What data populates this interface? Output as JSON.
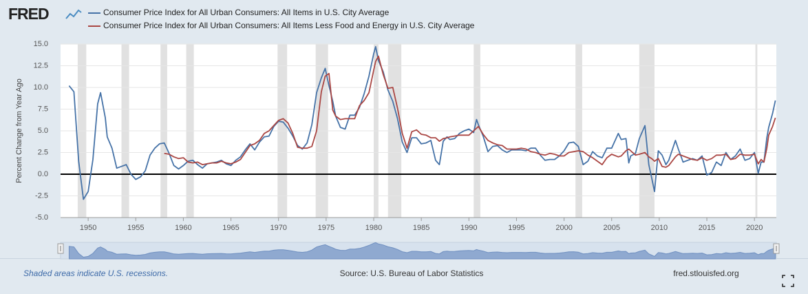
{
  "chart_data": {
    "type": "line",
    "logo": "FRED",
    "ylabel": "Percent Change from Year Ago",
    "footer_left": "Shaded areas indicate U.S. recessions.",
    "source": "Source: U.S. Bureau of Labor Statistics",
    "site": "fred.stlouisfed.org",
    "xlim": [
      1947.1,
      2022.3
    ],
    "ylim": [
      -5,
      15
    ],
    "xticks": [
      1950,
      1955,
      1960,
      1965,
      1970,
      1975,
      1980,
      1985,
      1990,
      1995,
      2000,
      2005,
      2010,
      2015,
      2020
    ],
    "yticks": [
      {
        "value": -5,
        "label": "-5.0"
      },
      -2.5,
      {
        "value": 0,
        "label": "0.0"
      },
      2.5,
      {
        "value": 5,
        "label": "5.0"
      },
      7.5,
      {
        "value": 10,
        "label": "10.0"
      },
      12.5,
      {
        "value": 15,
        "label": "15.0"
      }
    ],
    "grid": true,
    "recession_color": "#e1e1e1",
    "recessions": [
      [
        1948.9,
        1949.8
      ],
      [
        1953.5,
        1954.3
      ],
      [
        1957.6,
        1958.3
      ],
      [
        1960.3,
        1961.1
      ],
      [
        1969.9,
        1970.9
      ],
      [
        1973.9,
        1975.2
      ],
      [
        1980.0,
        1980.5
      ],
      [
        1981.5,
        1982.9
      ],
      [
        1990.5,
        1991.2
      ],
      [
        2001.2,
        2001.9
      ],
      [
        2007.9,
        2009.5
      ],
      [
        2020.1,
        2020.3
      ]
    ],
    "x": [
      1948,
      1948.5,
      1949,
      1949.5,
      1950,
      1950.5,
      1951,
      1951.3,
      1951.8,
      1952,
      1952.5,
      1953,
      1953.5,
      1954,
      1954.5,
      1955,
      1955.5,
      1956,
      1956.5,
      1957,
      1957.5,
      1958,
      1958.5,
      1959,
      1959.5,
      1960,
      1960.5,
      1961,
      1961.5,
      1962,
      1962.5,
      1963,
      1963.5,
      1964,
      1964.5,
      1965,
      1965.5,
      1966,
      1966.5,
      1967,
      1967.5,
      1968,
      1968.5,
      1969,
      1969.5,
      1970,
      1970.5,
      1971,
      1971.5,
      1972,
      1972.5,
      1973,
      1973.5,
      1974,
      1974.5,
      1974.9,
      1975.3,
      1975.7,
      1976,
      1976.5,
      1977,
      1977.5,
      1978,
      1978.5,
      1979,
      1979.5,
      1980,
      1980.2,
      1980.5,
      1981,
      1981.5,
      1982,
      1982.5,
      1983,
      1983.5,
      1984,
      1984.5,
      1985,
      1985.5,
      1986,
      1986.5,
      1986.9,
      1987.3,
      1987.7,
      1988,
      1988.5,
      1989,
      1989.5,
      1990,
      1990.5,
      1990.8,
      1991,
      1991.5,
      1992,
      1992.5,
      1993,
      1993.5,
      1994,
      1994.5,
      1995,
      1995.5,
      1996,
      1996.5,
      1997,
      1997.5,
      1998,
      1998.5,
      1999,
      1999.5,
      2000,
      2000.5,
      2001,
      2001.5,
      2002,
      2002.5,
      2003,
      2003.5,
      2004,
      2004.5,
      2005,
      2005.7,
      2006,
      2006.5,
      2006.8,
      2007,
      2007.5,
      2007.9,
      2008.5,
      2008.9,
      2009.2,
      2009.5,
      2009.9,
      2010.3,
      2010.7,
      2011,
      2011.7,
      2012,
      2012.5,
      2013,
      2013.5,
      2014,
      2014.5,
      2015,
      2015.5,
      2016,
      2016.5,
      2017,
      2017.5,
      2018,
      2018.5,
      2019,
      2019.5,
      2020,
      2020.4,
      2020.7,
      2021,
      2021.3,
      2021.5,
      2021.9,
      2022.2
    ],
    "series": [
      {
        "name": "Consumer Price Index for All Urban Consumers: All Items in U.S. City Average",
        "color": "#4572a7",
        "values": [
          10.2,
          9.5,
          1.5,
          -2.9,
          -2.0,
          1.7,
          8.1,
          9.4,
          6.5,
          4.3,
          3.0,
          0.7,
          0.9,
          1.1,
          0.0,
          -0.6,
          -0.3,
          0.4,
          2.2,
          3.0,
          3.5,
          3.6,
          2.4,
          1.0,
          0.6,
          1.0,
          1.5,
          1.6,
          1.1,
          0.7,
          1.2,
          1.3,
          1.4,
          1.6,
          1.2,
          1.0,
          1.6,
          2.0,
          2.8,
          3.5,
          2.8,
          3.7,
          4.3,
          4.4,
          5.5,
          6.1,
          6.0,
          5.3,
          4.4,
          3.3,
          2.9,
          3.6,
          5.7,
          9.4,
          11.1,
          12.2,
          10.2,
          8.4,
          6.7,
          5.4,
          5.2,
          6.8,
          6.8,
          7.7,
          9.3,
          11.3,
          13.9,
          14.7,
          13.1,
          11.8,
          9.7,
          8.4,
          6.4,
          3.7,
          2.5,
          4.2,
          4.2,
          3.5,
          3.6,
          3.9,
          1.6,
          1.1,
          3.8,
          4.3,
          4.0,
          4.1,
          4.7,
          5.0,
          5.2,
          4.8,
          6.3,
          5.7,
          4.4,
          2.6,
          3.2,
          3.3,
          2.8,
          2.5,
          2.8,
          2.8,
          2.8,
          2.7,
          3.0,
          3.0,
          2.2,
          1.6,
          1.7,
          1.7,
          2.1,
          2.7,
          3.6,
          3.7,
          3.2,
          1.1,
          1.5,
          2.6,
          2.1,
          1.9,
          3.0,
          3.0,
          4.7,
          4.0,
          4.1,
          1.3,
          2.1,
          2.4,
          4.1,
          5.6,
          1.1,
          -0.4,
          -2.0,
          2.7,
          2.2,
          1.1,
          1.6,
          3.9,
          2.9,
          1.4,
          1.6,
          1.8,
          1.6,
          2.1,
          -0.1,
          0.2,
          1.4,
          1.0,
          2.5,
          1.7,
          2.1,
          2.9,
          1.6,
          1.8,
          2.5,
          0.1,
          1.4,
          1.4,
          4.2,
          5.4,
          7.0,
          8.5
        ]
      },
      {
        "name": "Consumer Price Index for All Urban Consumers: All Items Less Food and Energy in U.S. City Average",
        "color": "#aa4643",
        "values": [
          null,
          null,
          null,
          null,
          null,
          null,
          null,
          null,
          null,
          null,
          null,
          null,
          null,
          null,
          null,
          null,
          null,
          null,
          null,
          null,
          null,
          2.4,
          2.3,
          2.0,
          1.8,
          1.9,
          1.4,
          1.3,
          1.4,
          1.1,
          1.2,
          1.3,
          1.3,
          1.5,
          1.3,
          1.2,
          1.4,
          1.7,
          2.5,
          3.3,
          3.5,
          3.9,
          4.7,
          5.0,
          5.6,
          6.2,
          6.4,
          5.9,
          4.7,
          3.1,
          3.0,
          3.0,
          3.2,
          5.0,
          9.5,
          11.3,
          11.6,
          7.4,
          6.7,
          6.3,
          6.4,
          6.4,
          6.4,
          7.9,
          8.5,
          9.4,
          12.0,
          13.0,
          13.6,
          11.5,
          9.9,
          10.0,
          7.6,
          4.7,
          3.0,
          4.9,
          5.1,
          4.6,
          4.5,
          4.2,
          4.2,
          3.8,
          4.1,
          4.2,
          4.3,
          4.4,
          4.5,
          4.5,
          4.5,
          5.0,
          5.3,
          5.5,
          4.6,
          3.9,
          3.6,
          3.4,
          3.3,
          2.9,
          2.9,
          2.9,
          3.0,
          2.9,
          2.6,
          2.5,
          2.3,
          2.2,
          2.4,
          2.3,
          2.1,
          2.1,
          2.5,
          2.6,
          2.7,
          2.6,
          2.2,
          1.9,
          1.5,
          1.1,
          1.9,
          2.3,
          2.0,
          2.1,
          2.7,
          2.9,
          2.7,
          2.2,
          2.3,
          2.5,
          2.0,
          1.8,
          1.5,
          1.8,
          0.9,
          0.8,
          1.0,
          2.0,
          2.3,
          2.1,
          1.9,
          1.7,
          1.6,
          1.9,
          1.6,
          1.8,
          2.2,
          2.2,
          2.3,
          1.7,
          1.8,
          2.3,
          2.2,
          2.2,
          2.3,
          1.2,
          1.7,
          1.4,
          3.0,
          4.5,
          5.5,
          6.5
        ]
      }
    ]
  }
}
